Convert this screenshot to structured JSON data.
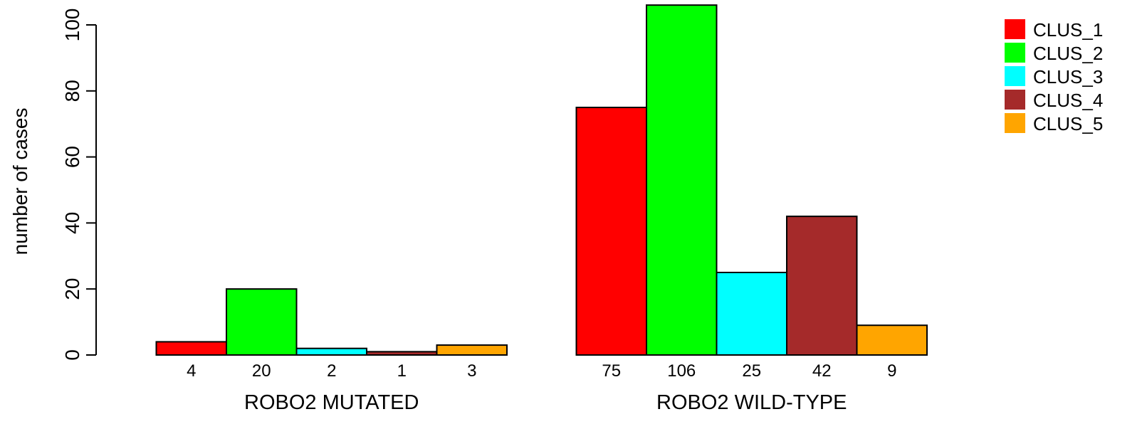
{
  "chart_data": {
    "type": "bar",
    "ylabel": "number of cases",
    "ylim": [
      0,
      106
    ],
    "yticks": [
      0,
      20,
      40,
      60,
      80,
      100
    ],
    "groups": [
      {
        "label": "ROBO2 MUTATED",
        "values": [
          4,
          20,
          2,
          1,
          3
        ]
      },
      {
        "label": "ROBO2 WILD-TYPE",
        "values": [
          75,
          106,
          25,
          42,
          9
        ]
      }
    ],
    "series": [
      {
        "name": "CLUS_1",
        "color": "#ff0000"
      },
      {
        "name": "CLUS_2",
        "color": "#00ff00"
      },
      {
        "name": "CLUS_3",
        "color": "#00ffff"
      },
      {
        "name": "CLUS_4",
        "color": "#a52a2a"
      },
      {
        "name": "CLUS_5",
        "color": "#ffa500"
      }
    ],
    "legend_position": "top-right"
  }
}
